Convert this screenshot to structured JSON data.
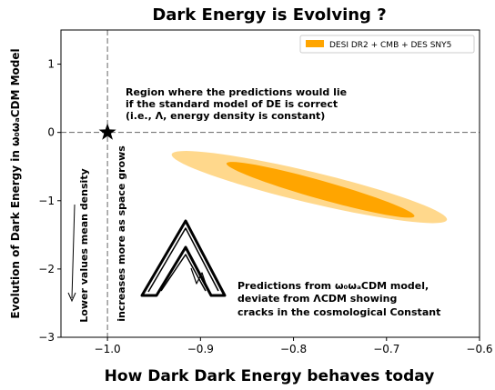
{
  "chart_data": {
    "type": "contour",
    "title": "Dark Energy is Evolving ?",
    "xlabel": "How Dark Dark Energy behaves today",
    "ylabel": "Evolution of Dark Energy in ω₀ωₐCDM Model",
    "xlim": [
      -1.05,
      -0.6
    ],
    "ylim": [
      -3,
      1.5
    ],
    "xticks": [
      {
        "value": -1.0,
        "label": "−1.0"
      },
      {
        "value": -0.9,
        "label": "−0.9"
      },
      {
        "value": -0.8,
        "label": "−0.8"
      },
      {
        "value": -0.7,
        "label": "−0.7"
      },
      {
        "value": -0.6,
        "label": "−0.6"
      }
    ],
    "yticks": [
      1,
      0,
      {
        "value": -1,
        "label": "−1"
      },
      {
        "value": -2,
        "label": "−2"
      },
      {
        "value": -3,
        "label": "−3"
      }
    ],
    "legend_position": "upper right",
    "reference_point": [
      -1,
      0
    ],
    "series": [
      {
        "name": "DESI DR2 + CMB + DES SNY5",
        "color": "#ffa500",
        "regions": [
          {
            "center": [
              -0.783,
              -0.8
            ],
            "major": [
              0.148,
              -0.48
            ],
            "minor": [
              -0.0038,
              -0.221
            ],
            "color": "#ffd88c"
          },
          {
            "center": [
              -0.771,
              -0.84
            ],
            "major": [
              0.101,
              -0.387
            ],
            "minor": [
              -0.0023,
              -0.13
            ],
            "color": "#ffa500"
          }
        ]
      }
    ],
    "annotations": [
      "Region where the predictions would lie",
      "if the standard model of DE is correct",
      "(i.e., Λ, energy density is constant)",
      "Lower values mean density",
      "increases more as space grows",
      "Predictions from ω₀ωₐCDM model,",
      "deviate from ΛCDM showing",
      "cracks in the cosmological Constant"
    ]
  }
}
